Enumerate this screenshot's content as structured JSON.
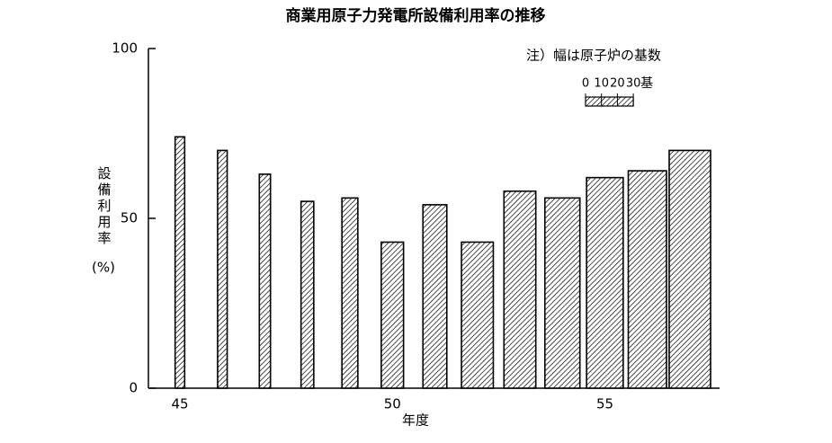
{
  "chart_data": {
    "type": "bar",
    "title": "商業用原子力発電所設備利用率の推移",
    "categories": [
      "45",
      null,
      null,
      null,
      null,
      "50",
      null,
      null,
      null,
      null,
      "55",
      null,
      null
    ],
    "values": [
      74,
      70,
      63,
      55,
      56,
      43,
      54,
      43,
      58,
      56,
      62,
      64,
      70
    ],
    "widths": [
      6,
      6,
      7,
      8,
      10,
      14,
      15,
      20,
      20,
      22,
      23,
      24,
      26
    ],
    "ylim": [
      0,
      100
    ],
    "yticks": [
      0,
      50,
      100
    ],
    "xlabel": "年度",
    "ylabel": "設備利用率",
    "ylabel_unit": "(%)",
    "note": "注）幅は原子炉の基数",
    "width_scale": {
      "ticks": [
        0,
        10,
        20,
        30
      ],
      "unit": "基"
    },
    "color": "#000000"
  }
}
